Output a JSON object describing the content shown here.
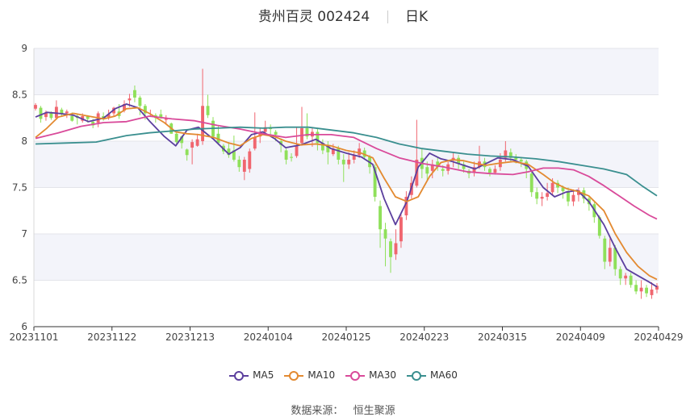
{
  "title": {
    "name": "贵州百灵 002424",
    "period": "日K"
  },
  "source": {
    "label": "数据来源：",
    "value": "恒生聚源"
  },
  "colors": {
    "up": "#f0666f",
    "down": "#8fe05a",
    "MA5": "#5b3f9e",
    "MA10": "#e38a31",
    "MA30": "#d94a9a",
    "MA60": "#3a8f8f",
    "band": "#f3f4fa",
    "grid": "#e3e4ea",
    "axis": "#333333"
  },
  "chart_data": {
    "type": "candlestick",
    "ylim": [
      6,
      9
    ],
    "yticks": [
      "6",
      "6.5",
      "7",
      "7.5",
      "8",
      "8.5",
      "9"
    ],
    "xticks": [
      "20231101",
      "20231122",
      "20231213",
      "20240104",
      "20240125",
      "20240223",
      "20240315",
      "20240409",
      "20240429"
    ],
    "grid": true,
    "legend_position": "bottom",
    "series": [
      {
        "name": "MA5",
        "points": [
          [
            0,
            8.26
          ],
          [
            3,
            8.31
          ],
          [
            6,
            8.3
          ],
          [
            10,
            8.28
          ],
          [
            14,
            8.21
          ],
          [
            18,
            8.25
          ],
          [
            21,
            8.35
          ],
          [
            24,
            8.4
          ],
          [
            27,
            8.36
          ],
          [
            30,
            8.22
          ],
          [
            34,
            8.05
          ],
          [
            37,
            7.95
          ],
          [
            40,
            8.12
          ],
          [
            43,
            8.15
          ],
          [
            47,
            8.02
          ],
          [
            51,
            7.86
          ],
          [
            54,
            7.93
          ],
          [
            57,
            8.07
          ],
          [
            60,
            8.1
          ],
          [
            63,
            8.03
          ],
          [
            66,
            7.93
          ],
          [
            70,
            7.96
          ],
          [
            74,
            8.02
          ],
          [
            78,
            7.92
          ],
          [
            82,
            7.87
          ],
          [
            86,
            7.83
          ],
          [
            89,
            7.75
          ],
          [
            92,
            7.38
          ],
          [
            95,
            7.1
          ],
          [
            98,
            7.35
          ],
          [
            101,
            7.72
          ],
          [
            104,
            7.87
          ],
          [
            107,
            7.81
          ],
          [
            110,
            7.78
          ],
          [
            113,
            7.74
          ],
          [
            116,
            7.7
          ],
          [
            119,
            7.76
          ],
          [
            122,
            7.82
          ],
          [
            126,
            7.8
          ],
          [
            130,
            7.73
          ],
          [
            134,
            7.5
          ],
          [
            137,
            7.4
          ],
          [
            140,
            7.45
          ],
          [
            143,
            7.47
          ],
          [
            146,
            7.35
          ],
          [
            150,
            7.1
          ],
          [
            153,
            6.85
          ],
          [
            156,
            6.62
          ],
          [
            159,
            6.55
          ],
          [
            162,
            6.48
          ],
          [
            164,
            6.43
          ]
        ]
      },
      {
        "name": "MA10",
        "points": [
          [
            0,
            8.04
          ],
          [
            3,
            8.14
          ],
          [
            6,
            8.26
          ],
          [
            10,
            8.3
          ],
          [
            14,
            8.27
          ],
          [
            18,
            8.24
          ],
          [
            21,
            8.27
          ],
          [
            24,
            8.35
          ],
          [
            27,
            8.36
          ],
          [
            30,
            8.3
          ],
          [
            34,
            8.2
          ],
          [
            37,
            8.1
          ],
          [
            40,
            8.08
          ],
          [
            43,
            8.07
          ],
          [
            47,
            8.04
          ],
          [
            51,
            7.98
          ],
          [
            54,
            7.95
          ],
          [
            57,
            8.03
          ],
          [
            60,
            8.07
          ],
          [
            63,
            8.05
          ],
          [
            66,
            8.0
          ],
          [
            70,
            7.96
          ],
          [
            74,
            7.97
          ],
          [
            78,
            7.95
          ],
          [
            82,
            7.9
          ],
          [
            86,
            7.87
          ],
          [
            89,
            7.82
          ],
          [
            92,
            7.6
          ],
          [
            95,
            7.4
          ],
          [
            98,
            7.35
          ],
          [
            101,
            7.4
          ],
          [
            104,
            7.62
          ],
          [
            107,
            7.77
          ],
          [
            110,
            7.8
          ],
          [
            113,
            7.79
          ],
          [
            116,
            7.76
          ],
          [
            119,
            7.74
          ],
          [
            122,
            7.76
          ],
          [
            126,
            7.78
          ],
          [
            130,
            7.75
          ],
          [
            134,
            7.64
          ],
          [
            137,
            7.55
          ],
          [
            140,
            7.49
          ],
          [
            143,
            7.46
          ],
          [
            146,
            7.41
          ],
          [
            150,
            7.25
          ],
          [
            153,
            7.0
          ],
          [
            156,
            6.8
          ],
          [
            159,
            6.65
          ],
          [
            162,
            6.55
          ],
          [
            164,
            6.51
          ]
        ]
      },
      {
        "name": "MA30",
        "points": [
          [
            0,
            8.03
          ],
          [
            6,
            8.09
          ],
          [
            12,
            8.16
          ],
          [
            18,
            8.2
          ],
          [
            24,
            8.21
          ],
          [
            30,
            8.27
          ],
          [
            36,
            8.24
          ],
          [
            42,
            8.22
          ],
          [
            48,
            8.17
          ],
          [
            54,
            8.13
          ],
          [
            60,
            8.08
          ],
          [
            66,
            8.04
          ],
          [
            72,
            8.07
          ],
          [
            78,
            8.07
          ],
          [
            84,
            8.04
          ],
          [
            90,
            7.92
          ],
          [
            96,
            7.82
          ],
          [
            102,
            7.76
          ],
          [
            108,
            7.72
          ],
          [
            114,
            7.67
          ],
          [
            120,
            7.65
          ],
          [
            126,
            7.64
          ],
          [
            130,
            7.67
          ],
          [
            134,
            7.71
          ],
          [
            138,
            7.71
          ],
          [
            142,
            7.69
          ],
          [
            146,
            7.62
          ],
          [
            150,
            7.52
          ],
          [
            154,
            7.41
          ],
          [
            158,
            7.3
          ],
          [
            162,
            7.2
          ],
          [
            164,
            7.16
          ]
        ]
      },
      {
        "name": "MA60",
        "points": [
          [
            0,
            7.97
          ],
          [
            8,
            7.98
          ],
          [
            16,
            7.99
          ],
          [
            24,
            8.06
          ],
          [
            30,
            8.09
          ],
          [
            36,
            8.11
          ],
          [
            42,
            8.13
          ],
          [
            48,
            8.14
          ],
          [
            54,
            8.15
          ],
          [
            60,
            8.14
          ],
          [
            66,
            8.15
          ],
          [
            72,
            8.15
          ],
          [
            78,
            8.12
          ],
          [
            84,
            8.09
          ],
          [
            90,
            8.04
          ],
          [
            96,
            7.97
          ],
          [
            102,
            7.92
          ],
          [
            108,
            7.89
          ],
          [
            114,
            7.86
          ],
          [
            120,
            7.84
          ],
          [
            126,
            7.83
          ],
          [
            132,
            7.81
          ],
          [
            138,
            7.78
          ],
          [
            144,
            7.74
          ],
          [
            150,
            7.7
          ],
          [
            156,
            7.64
          ],
          [
            160,
            7.52
          ],
          [
            164,
            7.41
          ]
        ]
      }
    ],
    "candles": [
      [
        8.35,
        8.39,
        8.41,
        8.33
      ],
      [
        8.36,
        8.24,
        8.38,
        8.2
      ],
      [
        8.26,
        8.31,
        8.33,
        8.22
      ],
      [
        8.3,
        8.25,
        8.32,
        8.23
      ],
      [
        8.25,
        8.37,
        8.44,
        8.23
      ],
      [
        8.34,
        8.3,
        8.36,
        8.26
      ],
      [
        8.3,
        8.32,
        8.34,
        8.25
      ],
      [
        8.27,
        8.22,
        8.31,
        8.21
      ],
      [
        8.27,
        8.25,
        8.29,
        8.18
      ],
      [
        8.22,
        8.27,
        8.3,
        8.2
      ],
      [
        8.27,
        8.24,
        8.28,
        8.2
      ],
      [
        8.21,
        8.17,
        8.24,
        8.14
      ],
      [
        8.2,
        8.3,
        8.32,
        8.15
      ],
      [
        8.27,
        8.25,
        8.31,
        8.22
      ],
      [
        8.26,
        8.29,
        8.34,
        8.23
      ],
      [
        8.3,
        8.36,
        8.37,
        8.27
      ],
      [
        8.32,
        8.27,
        8.4,
        8.24
      ],
      [
        8.33,
        8.4,
        8.44,
        8.31
      ],
      [
        8.44,
        8.46,
        8.51,
        8.37
      ],
      [
        8.55,
        8.47,
        8.6,
        8.42
      ],
      [
        8.47,
        8.38,
        8.49,
        8.28
      ],
      [
        8.38,
        8.3,
        8.4,
        8.23
      ],
      [
        8.27,
        8.27,
        8.34,
        8.26
      ],
      [
        8.28,
        8.25,
        8.3,
        8.2
      ],
      [
        8.29,
        8.26,
        8.34,
        8.24
      ],
      [
        8.23,
        8.25,
        8.28,
        8.19
      ],
      [
        8.19,
        8.08,
        8.2,
        8.08
      ],
      [
        8.08,
        7.99,
        8.1,
        7.97
      ],
      [
        8.05,
        7.98,
        8.06,
        7.92
      ],
      [
        7.91,
        7.85,
        7.92,
        7.79
      ],
      [
        7.93,
        7.99,
        8.02,
        7.75
      ],
      [
        7.95,
        8.02,
        8.08,
        7.94
      ],
      [
        8.0,
        8.38,
        8.78,
        7.96
      ],
      [
        8.38,
        8.28,
        8.5,
        8.25
      ],
      [
        8.22,
        8.05,
        8.26,
        8.02
      ],
      [
        8.08,
        7.98,
        8.16,
        7.96
      ],
      [
        7.95,
        7.89,
        7.97,
        7.86
      ],
      [
        7.92,
        7.85,
        7.99,
        7.82
      ],
      [
        7.9,
        7.8,
        8.06,
        7.78
      ],
      [
        7.8,
        7.72,
        7.84,
        7.67
      ],
      [
        7.67,
        7.8,
        7.83,
        7.58
      ],
      [
        7.7,
        7.89,
        7.92,
        7.66
      ],
      [
        7.92,
        8.04,
        8.31,
        7.9
      ],
      [
        8.05,
        8.1,
        8.14,
        7.98
      ],
      [
        8.1,
        8.15,
        8.22,
        8.07
      ],
      [
        8.15,
        8.13,
        8.18,
        8.07
      ],
      [
        8.1,
        8.07,
        8.12,
        8.0
      ],
      [
        8.0,
        7.96,
        8.03,
        7.88
      ],
      [
        7.9,
        7.8,
        7.92,
        7.75
      ],
      [
        7.83,
        7.82,
        7.87,
        7.78
      ],
      [
        7.84,
        7.95,
        8.15,
        7.82
      ],
      [
        7.98,
        8.14,
        8.37,
        7.95
      ],
      [
        8.14,
        8.05,
        8.3,
        8.02
      ],
      [
        8.05,
        8.1,
        8.15,
        7.94
      ],
      [
        8.1,
        7.98,
        8.14,
        7.9
      ],
      [
        7.98,
        7.9,
        8.02,
        7.86
      ],
      [
        7.95,
        7.88,
        8.0,
        7.75
      ],
      [
        7.86,
        7.92,
        7.97,
        7.84
      ],
      [
        7.92,
        7.8,
        7.95,
        7.75
      ],
      [
        7.8,
        7.75,
        7.86,
        7.56
      ],
      [
        7.75,
        7.8,
        7.88,
        7.7
      ],
      [
        7.8,
        7.85,
        7.9,
        7.76
      ],
      [
        7.85,
        7.92,
        7.98,
        7.82
      ],
      [
        7.9,
        7.83,
        7.93,
        7.8
      ],
      [
        7.83,
        7.72,
        7.85,
        7.65
      ],
      [
        7.72,
        7.4,
        7.75,
        7.35
      ],
      [
        7.3,
        7.05,
        7.36,
        6.85
      ],
      [
        7.05,
        6.95,
        7.12,
        6.65
      ],
      [
        6.92,
        6.75,
        6.95,
        6.58
      ],
      [
        6.78,
        6.9,
        7.05,
        6.72
      ],
      [
        6.92,
        7.18,
        7.22,
        6.85
      ],
      [
        7.2,
        7.4,
        7.46,
        7.15
      ],
      [
        7.42,
        7.55,
        7.62,
        7.38
      ],
      [
        7.52,
        7.8,
        8.23,
        7.5
      ],
      [
        7.82,
        7.7,
        7.92,
        7.6
      ],
      [
        7.72,
        7.65,
        7.78,
        7.58
      ],
      [
        7.68,
        7.75,
        7.8,
        7.6
      ],
      [
        7.78,
        7.72,
        7.83,
        7.68
      ],
      [
        7.7,
        7.68,
        7.74,
        7.62
      ],
      [
        7.68,
        7.75,
        7.78,
        7.64
      ],
      [
        7.8,
        7.82,
        7.88,
        7.72
      ],
      [
        7.82,
        7.76,
        7.85,
        7.7
      ],
      [
        7.75,
        7.7,
        7.78,
        7.66
      ],
      [
        7.68,
        7.65,
        7.7,
        7.6
      ],
      [
        7.66,
        7.72,
        7.78,
        7.62
      ],
      [
        7.72,
        7.78,
        7.95,
        7.7
      ],
      [
        7.78,
        7.72,
        7.82,
        7.68
      ],
      [
        7.7,
        7.66,
        7.72,
        7.62
      ],
      [
        7.66,
        7.7,
        7.74,
        7.64
      ],
      [
        7.72,
        7.8,
        7.87,
        7.68
      ],
      [
        7.82,
        7.9,
        8.0,
        7.78
      ],
      [
        7.88,
        7.82,
        7.92,
        7.78
      ],
      [
        7.82,
        7.8,
        7.86,
        7.76
      ],
      [
        7.8,
        7.78,
        7.83,
        7.72
      ],
      [
        7.78,
        7.7,
        7.8,
        7.6
      ],
      [
        7.65,
        7.45,
        7.68,
        7.4
      ],
      [
        7.45,
        7.38,
        7.5,
        7.32
      ],
      [
        7.38,
        7.4,
        7.45,
        7.3
      ],
      [
        7.4,
        7.44,
        7.55,
        7.36
      ],
      [
        7.45,
        7.55,
        7.6,
        7.42
      ],
      [
        7.55,
        7.5,
        7.58,
        7.44
      ],
      [
        7.5,
        7.46,
        7.52,
        7.38
      ],
      [
        7.46,
        7.35,
        7.5,
        7.3
      ],
      [
        7.35,
        7.42,
        7.48,
        7.3
      ],
      [
        7.42,
        7.47,
        7.5,
        7.35
      ],
      [
        7.47,
        7.38,
        7.5,
        7.33
      ],
      [
        7.38,
        7.32,
        7.4,
        7.25
      ],
      [
        7.32,
        7.18,
        7.34,
        7.12
      ],
      [
        7.18,
        6.98,
        7.2,
        6.95
      ],
      [
        6.95,
        6.7,
        6.98,
        6.62
      ],
      [
        6.7,
        6.85,
        6.95,
        6.65
      ],
      [
        6.85,
        6.62,
        6.88,
        6.55
      ],
      [
        6.62,
        6.52,
        6.65,
        6.45
      ],
      [
        6.52,
        6.55,
        6.58,
        6.45
      ],
      [
        6.55,
        6.45,
        6.58,
        6.42
      ],
      [
        6.45,
        6.38,
        6.5,
        6.35
      ],
      [
        6.38,
        6.42,
        6.5,
        6.3
      ],
      [
        6.42,
        6.36,
        6.45,
        6.32
      ],
      [
        6.34,
        6.4,
        6.48,
        6.3
      ],
      [
        6.4,
        6.44,
        6.47,
        6.36
      ]
    ]
  }
}
